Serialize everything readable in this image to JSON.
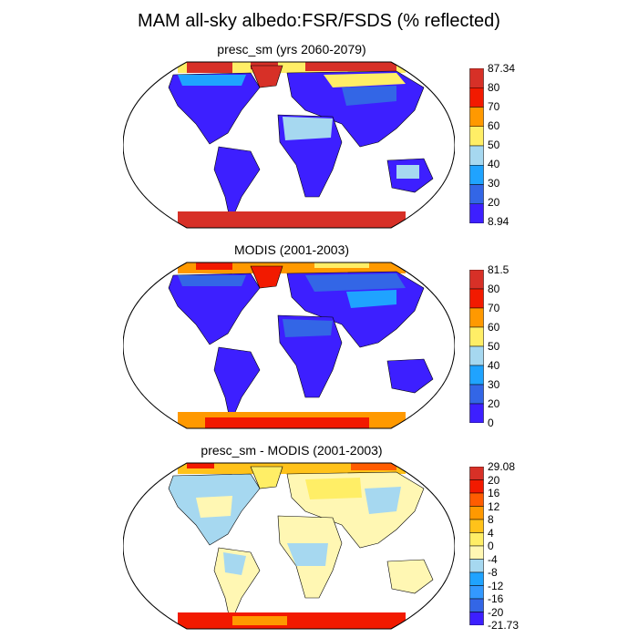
{
  "title": "MAM all-sky albedo:FSR/FSDS (% reflected)",
  "panels": [
    {
      "title": "presc_sm (yrs 2060-2079)",
      "colorbar": {
        "labels": [
          "87.34",
          "80",
          "70",
          "60",
          "50",
          "40",
          "30",
          "20",
          "8.94"
        ],
        "colors": [
          "#d73027",
          "#f21a00",
          "#ff9900",
          "#ffee66",
          "#a6d8f0",
          "#1fa3ff",
          "#3366e6",
          "#3d1fff"
        ]
      }
    },
    {
      "title": "MODIS (2001-2003)",
      "colorbar": {
        "labels": [
          "81.5",
          "80",
          "70",
          "60",
          "50",
          "40",
          "30",
          "20",
          "0"
        ],
        "colors": [
          "#d73027",
          "#f21a00",
          "#ff9900",
          "#ffee66",
          "#a6d8f0",
          "#1fa3ff",
          "#3366e6",
          "#3d1fff"
        ]
      }
    },
    {
      "title": "presc_sm - MODIS (2001-2003)",
      "colorbar": {
        "labels": [
          "29.08",
          "20",
          "16",
          "12",
          "8",
          "4",
          "0",
          "-4",
          "-8",
          "-12",
          "-16",
          "-20",
          "-21.73"
        ],
        "colors": [
          "#d73027",
          "#f21a00",
          "#ff5c00",
          "#ff9900",
          "#ffc21a",
          "#ffee66",
          "#fff7b3",
          "#a6d8f0",
          "#1fa3ff",
          "#3399ff",
          "#3366e6",
          "#3d1fff"
        ]
      }
    }
  ]
}
